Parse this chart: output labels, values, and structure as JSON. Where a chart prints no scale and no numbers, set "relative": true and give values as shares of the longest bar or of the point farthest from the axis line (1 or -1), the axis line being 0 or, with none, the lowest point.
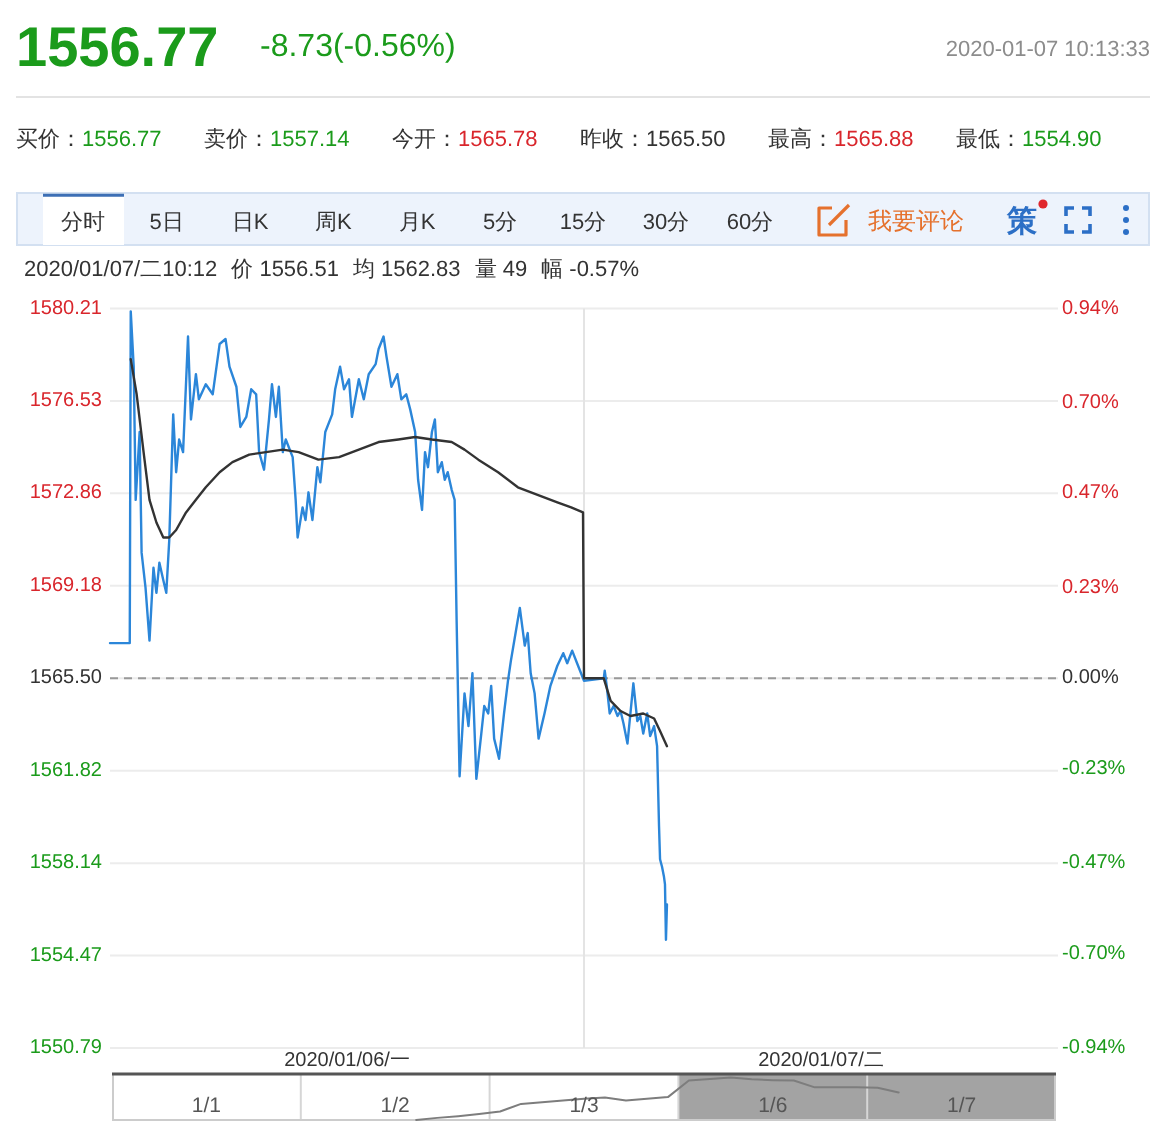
{
  "chart_data": [
    {
      "type": "other",
      "title": "1556.77",
      "subtitle": "-8.73(-0.56%)",
      "annotations": [
        "2020-01-07 10:13:33",
        "买价：",
        "1556.77",
        "卖价：",
        "1557.14",
        "今开：",
        "1565.78",
        "昨收：",
        "1565.50",
        "最高：",
        "1565.88",
        "最低：",
        "1554.90",
        "分时",
        "5日",
        "日K",
        "周K",
        "月K",
        "5分",
        "15分",
        "30分",
        "60分",
        "我要评论",
        "策",
        "2020/01/07/二10:12",
        "价 1556.51",
        "均 1562.83",
        "量 49",
        "幅 -0.57%"
      ]
    },
    {
      "type": "line",
      "xlim": [
        "2020-01-06T06:00",
        "2020-01-08T06:00"
      ],
      "xticks": [
        {
          "value": "2020-01-06T18:00",
          "label": "2020/01/06/一"
        },
        {
          "value": "2020-01-07T18:00",
          "label": "2020/01/07/二"
        }
      ],
      "ylim": [
        1550.79,
        1580.21
      ],
      "yticks": [
        1550.79,
        1554.47,
        1558.14,
        1561.82,
        {
          "value": 1565.5,
          "label": "1565.50"
        },
        1569.18,
        1572.86,
        1576.53,
        1580.21
      ],
      "y2lim": [
        -0.94,
        0.94
      ],
      "y2ticks": [
        {
          "value": -0.94,
          "label": "-0.94%"
        },
        {
          "value": -0.7,
          "label": "-0.70%"
        },
        {
          "value": -0.47,
          "label": "-0.47%"
        },
        {
          "value": -0.23,
          "label": "-0.23%"
        },
        {
          "value": 0,
          "label": "0.00%"
        },
        {
          "value": 0.23,
          "label": "0.23%"
        },
        {
          "value": 0.47,
          "label": "0.47%"
        },
        {
          "value": 0.7,
          "label": "0.70%"
        },
        {
          "value": 0.94,
          "label": "0.94%"
        }
      ],
      "grid": "y",
      "ref_lines": [
        {
          "axis": "y",
          "value": 1565.5,
          "color": "#999999",
          "line_style": "dashed"
        },
        {
          "axis": "x",
          "value": "2020-01-07T06:00",
          "color": "#e4e4e4"
        }
      ],
      "series": [
        {
          "color": "#2b86d9",
          "x": [
            "2020-01-06T06:00",
            "2020-01-06T07:00",
            "2020-01-06T07:03",
            "2020-01-06T07:12",
            "2020-01-06T07:18",
            "2020-01-06T07:30",
            "2020-01-06T07:36",
            "2020-01-06T07:48",
            "2020-01-06T08:00",
            "2020-01-06T08:12",
            "2020-01-06T08:21",
            "2020-01-06T08:30",
            "2020-01-06T08:42",
            "2020-01-06T08:51",
            "2020-01-06T09:00",
            "2020-01-06T09:12",
            "2020-01-06T09:21",
            "2020-01-06T09:30",
            "2020-01-06T09:42",
            "2020-01-06T09:57",
            "2020-01-06T10:06",
            "2020-01-06T10:21",
            "2020-01-06T10:30",
            "2020-01-06T10:51",
            "2020-01-06T11:12",
            "2020-01-06T11:33",
            "2020-01-06T11:51",
            "2020-01-06T12:03",
            "2020-01-06T12:24",
            "2020-01-06T12:36",
            "2020-01-06T12:54",
            "2020-01-06T13:09",
            "2020-01-06T13:24",
            "2020-01-06T13:33",
            "2020-01-06T13:48",
            "2020-01-06T14:03",
            "2020-01-06T14:12",
            "2020-01-06T14:24",
            "2020-01-06T14:33",
            "2020-01-06T14:45",
            "2020-01-06T14:54",
            "2020-01-06T15:15",
            "2020-01-06T15:24",
            "2020-01-06T15:30",
            "2020-01-06T15:45",
            "2020-01-06T15:54",
            "2020-01-06T16:03",
            "2020-01-06T16:15",
            "2020-01-06T16:30",
            "2020-01-06T16:39",
            "2020-01-06T16:54",
            "2020-01-06T17:15",
            "2020-01-06T17:24",
            "2020-01-06T17:39",
            "2020-01-06T17:51",
            "2020-01-06T18:06",
            "2020-01-06T18:15",
            "2020-01-06T18:36",
            "2020-01-06T18:51",
            "2020-01-06T19:06",
            "2020-01-06T19:27",
            "2020-01-06T19:36",
            "2020-01-06T19:51",
            "2020-01-06T20:00",
            "2020-01-06T20:15",
            "2020-01-06T20:33",
            "2020-01-06T20:45",
            "2020-01-06T21:00",
            "2020-01-06T21:12",
            "2020-01-06T21:27",
            "2020-01-06T21:36",
            "2020-01-06T21:48",
            "2020-01-06T21:57",
            "2020-01-06T22:06",
            "2020-01-06T22:18",
            "2020-01-06T22:27",
            "2020-01-06T22:36",
            "2020-01-06T22:48",
            "2020-01-06T22:57",
            "2020-01-06T23:06",
            "2020-01-06T23:18",
            "2020-01-06T23:27",
            "2020-01-06T23:33",
            "2020-01-06T23:42",
            "2020-01-06T23:57",
            "2020-01-07T00:09",
            "2020-01-07T00:21",
            "2020-01-07T00:33",
            "2020-01-07T00:48",
            "2020-01-07T00:57",
            "2020-01-07T01:09",
            "2020-01-07T01:18",
            "2020-01-07T01:27",
            "2020-01-07T01:42",
            "2020-01-07T01:57",
            "2020-01-07T02:09",
            "2020-01-07T02:18",
            "2020-01-07T02:36",
            "2020-01-07T02:45",
            "2020-01-07T03:00",
            "2020-01-07T03:09",
            "2020-01-07T03:18",
            "2020-01-07T03:30",
            "2020-01-07T03:42",
            "2020-01-07T04:00",
            "2020-01-07T04:18",
            "2020-01-07T04:39",
            "2020-01-07T04:57",
            "2020-01-07T05:09",
            "2020-01-07T05:24",
            "2020-01-07T05:39",
            "2020-01-07T05:54",
            "2020-01-07T06:00",
            "2020-01-07T07:00",
            "2020-01-07T07:03",
            "2020-01-07T07:09",
            "2020-01-07T07:18",
            "2020-01-07T07:30",
            "2020-01-07T07:42",
            "2020-01-07T07:51",
            "2020-01-07T08:00",
            "2020-01-07T08:12",
            "2020-01-07T08:21",
            "2020-01-07T08:30",
            "2020-01-07T08:42",
            "2020-01-07T08:51",
            "2020-01-07T09:00",
            "2020-01-07T09:12",
            "2020-01-07T09:21",
            "2020-01-07T09:33",
            "2020-01-07T09:42",
            "2020-01-07T09:48",
            "2020-01-07T09:51",
            "2020-01-07T09:57",
            "2020-01-07T10:03",
            "2020-01-07T10:06",
            "2020-01-07T10:09",
            "2020-01-07T10:12"
          ],
          "values": [
            1566.9,
            1566.9,
            1580.1,
            1577.9,
            1572.6,
            1575.3,
            1570.5,
            1569.1,
            1567.0,
            1569.9,
            1568.9,
            1570.1,
            1569.4,
            1568.9,
            1571.0,
            1576.0,
            1573.7,
            1575.0,
            1574.5,
            1579.1,
            1575.8,
            1577.6,
            1576.6,
            1577.2,
            1576.8,
            1578.8,
            1579.0,
            1577.9,
            1577.1,
            1575.5,
            1575.9,
            1577.0,
            1576.8,
            1574.5,
            1573.8,
            1575.8,
            1577.2,
            1575.9,
            1577.1,
            1574.5,
            1575.0,
            1574.3,
            1572.6,
            1571.1,
            1572.3,
            1571.8,
            1572.9,
            1571.8,
            1573.9,
            1573.3,
            1575.3,
            1576.0,
            1577.0,
            1577.9,
            1577.0,
            1577.4,
            1575.9,
            1577.4,
            1576.6,
            1577.6,
            1578.0,
            1578.6,
            1579.1,
            1578.3,
            1577.1,
            1577.6,
            1576.6,
            1576.8,
            1576.2,
            1575.3,
            1573.4,
            1572.2,
            1574.5,
            1573.9,
            1575.3,
            1575.8,
            1573.7,
            1574.1,
            1573.4,
            1573.7,
            1573.0,
            1572.6,
            1567.8,
            1561.6,
            1564.9,
            1563.6,
            1565.7,
            1561.5,
            1563.3,
            1564.4,
            1564.1,
            1565.2,
            1563.1,
            1562.3,
            1564.1,
            1565.4,
            1566.2,
            1567.6,
            1568.3,
            1566.8,
            1567.3,
            1565.7,
            1564.9,
            1563.1,
            1564.1,
            1565.2,
            1566.0,
            1566.5,
            1566.1,
            1566.6,
            1566.1,
            1565.6,
            1565.4,
            1565.5,
            1565.8,
            1565.2,
            1564.1,
            1564.4,
            1564.0,
            1564.2,
            1563.7,
            1562.9,
            1564.1,
            1565.3,
            1563.8,
            1564.0,
            1563.3,
            1564.1,
            1563.2,
            1563.6,
            1562.8,
            1559.6,
            1558.3,
            1558.0,
            1557.6,
            1557.3,
            1555.1,
            1556.5
          ]
        },
        {
          "color": "#333333",
          "x": [
            "2020-01-06T07:03",
            "2020-01-06T07:21",
            "2020-01-06T07:42",
            "2020-01-06T08:00",
            "2020-01-06T08:21",
            "2020-01-06T08:42",
            "2020-01-06T09:00",
            "2020-01-06T09:21",
            "2020-01-06T09:51",
            "2020-01-06T10:21",
            "2020-01-06T10:51",
            "2020-01-06T11:33",
            "2020-01-06T12:12",
            "2020-01-06T13:03",
            "2020-01-06T13:54",
            "2020-01-06T14:45",
            "2020-01-06T15:33",
            "2020-01-06T16:33",
            "2020-01-06T17:36",
            "2020-01-06T18:36",
            "2020-01-06T19:36",
            "2020-01-06T20:36",
            "2020-01-06T21:27",
            "2020-01-06T22:18",
            "2020-01-06T23:18",
            "2020-01-06T23:57",
            "2020-01-07T00:39",
            "2020-01-07T01:39",
            "2020-01-07T02:39",
            "2020-01-07T03:39",
            "2020-01-07T04:39",
            "2020-01-07T05:21",
            "2020-01-07T05:57",
            "2020-01-07T06:00",
            "2020-01-07T07:00",
            "2020-01-07T07:21",
            "2020-01-07T07:51",
            "2020-01-07T08:21",
            "2020-01-07T09:00",
            "2020-01-07T09:33",
            "2020-01-07T09:51",
            "2020-01-07T10:12"
          ],
          "values": [
            1578.2,
            1576.8,
            1574.5,
            1572.6,
            1571.7,
            1571.1,
            1571.1,
            1571.4,
            1572.1,
            1572.6,
            1573.1,
            1573.7,
            1574.1,
            1574.4,
            1574.5,
            1574.6,
            1574.5,
            1574.2,
            1574.3,
            1574.6,
            1574.9,
            1575.0,
            1575.1,
            1575.0,
            1574.9,
            1574.6,
            1574.2,
            1573.7,
            1573.1,
            1572.8,
            1572.5,
            1572.3,
            1572.1,
            1565.5,
            1565.5,
            1564.6,
            1564.2,
            1564.0,
            1564.1,
            1563.9,
            1563.4,
            1562.8
          ]
        }
      ]
    },
    {
      "type": "line",
      "relative": true,
      "categories": [
        null,
        null,
        null,
        null,
        "1/1",
        null,
        null,
        null,
        null,
        null,
        null,
        null,
        null,
        "1/2",
        null,
        null,
        null,
        null,
        null,
        null,
        null,
        null,
        "1/3",
        null,
        null,
        null,
        null,
        null,
        null,
        null,
        null,
        "1/6",
        null,
        null,
        null,
        null,
        null,
        null,
        null,
        null,
        "1/7",
        null,
        null,
        null,
        null
      ],
      "grid": "x",
      "color": "#7d7d7d",
      "values": [
        null,
        null,
        null,
        null,
        null,
        null,
        null,
        null,
        null,
        null,
        null,
        null,
        null,
        null,
        0,
        0.05,
        0.09,
        0.14,
        0.2,
        0.38,
        0.42,
        0.46,
        0.5,
        0.53,
        0.46,
        0.5,
        0.54,
        0.93,
        0.97,
        1,
        0.96,
        0.94,
        0.93,
        0.77,
        0.77,
        0.77,
        0.76,
        0.65,
        null,
        null,
        null,
        null,
        null,
        null,
        null
      ]
    }
  ]
}
